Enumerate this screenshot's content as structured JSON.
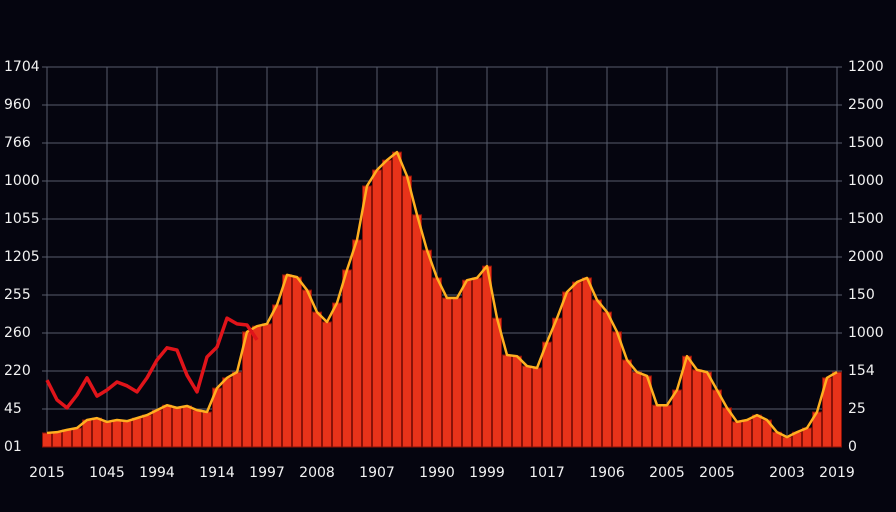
{
  "chart_data": {
    "type": "bar",
    "categories": [
      "2015",
      null,
      null,
      null,
      null,
      null,
      "1045",
      null,
      null,
      null,
      null,
      "1994",
      null,
      null,
      null,
      null,
      null,
      "1914",
      null,
      null,
      null,
      null,
      "1997",
      null,
      null,
      null,
      null,
      "2008",
      null,
      null,
      null,
      null,
      null,
      "1907",
      null,
      null,
      null,
      null,
      null,
      "1990",
      null,
      null,
      null,
      null,
      "1999",
      null,
      null,
      null,
      null,
      null,
      "1017",
      null,
      null,
      null,
      null,
      null,
      "1906",
      null,
      null,
      null,
      null,
      null,
      "2005",
      null,
      null,
      null,
      null,
      "2005",
      null,
      null,
      null,
      null,
      null,
      null,
      "2003",
      null,
      null,
      null,
      null,
      "2019"
    ],
    "series": [
      {
        "color": "#e8331a",
        "values": [
          0.37,
          0.39,
          0.45,
          0.5,
          0.71,
          0.76,
          0.66,
          0.71,
          0.68,
          0.76,
          0.84,
          0.97,
          1.1,
          1.03,
          1.08,
          0.97,
          0.92,
          1.55,
          1.82,
          1.97,
          3.03,
          3.18,
          3.24,
          3.74,
          4.53,
          4.47,
          4.13,
          3.55,
          3.29,
          3.79,
          4.66,
          5.45,
          6.87,
          7.29,
          7.55,
          7.76,
          7.13,
          6.11,
          5.18,
          4.45,
          3.92,
          3.92,
          4.39,
          4.45,
          4.76,
          3.39,
          2.42,
          2.39,
          2.13,
          2.08,
          2.76,
          3.39,
          4.08,
          4.34,
          4.45,
          3.87,
          3.55,
          3.03,
          2.29,
          1.97,
          1.87,
          1.1,
          1.1,
          1.5,
          2.39,
          2.03,
          1.97,
          1.5,
          1.03,
          0.66,
          0.71,
          0.84,
          0.71,
          0.39,
          0.26,
          0.39,
          0.5,
          0.92,
          1.82,
          1.97
        ]
      },
      {
        "color": "#e0141a",
        "values": [
          1.76,
          1.24,
          1.03,
          1.37,
          1.82,
          1.34,
          1.5,
          1.71,
          1.61,
          1.45,
          1.82,
          2.29,
          2.61,
          2.55,
          1.89,
          1.45,
          2.37,
          2.63,
          3.39,
          3.24,
          3.21,
          2.82,
          null,
          null,
          null,
          null,
          null,
          null,
          null,
          null,
          null,
          null,
          null,
          null,
          null,
          null,
          null,
          null,
          null,
          null,
          null,
          null,
          null,
          null,
          null,
          null,
          null,
          null,
          null,
          null,
          null,
          null,
          null,
          null,
          null,
          null,
          null,
          null,
          null,
          null,
          null,
          null,
          null,
          null,
          null,
          null,
          null,
          null,
          null,
          null,
          null,
          null,
          null,
          null,
          null,
          null,
          null,
          null,
          null,
          null
        ]
      }
    ],
    "line_color": "#ffb020",
    "ylim": [
      0,
      10
    ],
    "yticks": [
      {
        "value": 0,
        "label": "01"
      },
      {
        "value": 1,
        "label": "45"
      },
      {
        "value": 2,
        "label": "220"
      },
      {
        "value": 3,
        "label": "260"
      },
      {
        "value": 4,
        "label": "255"
      },
      {
        "value": 5,
        "label": "1205"
      },
      {
        "value": 6,
        "label": "1055"
      },
      {
        "value": 7,
        "label": "1000"
      },
      {
        "value": 8,
        "label": "766"
      },
      {
        "value": 9,
        "label": "960"
      },
      {
        "value": 10,
        "label": "1704"
      }
    ],
    "y2lim": [
      0,
      10
    ],
    "y2ticks": [
      {
        "value": 0,
        "label": "0"
      },
      {
        "value": 1,
        "label": "25"
      },
      {
        "value": 2,
        "label": "154"
      },
      {
        "value": 3,
        "label": "1000"
      },
      {
        "value": 4,
        "label": "150"
      },
      {
        "value": 5,
        "label": "2000"
      },
      {
        "value": 6,
        "label": "1500"
      },
      {
        "value": 7,
        "label": "1000"
      },
      {
        "value": 8,
        "label": "1500"
      },
      {
        "value": 9,
        "label": "2500"
      },
      {
        "value": 10,
        "label": "1200"
      }
    ],
    "grid": true
  }
}
